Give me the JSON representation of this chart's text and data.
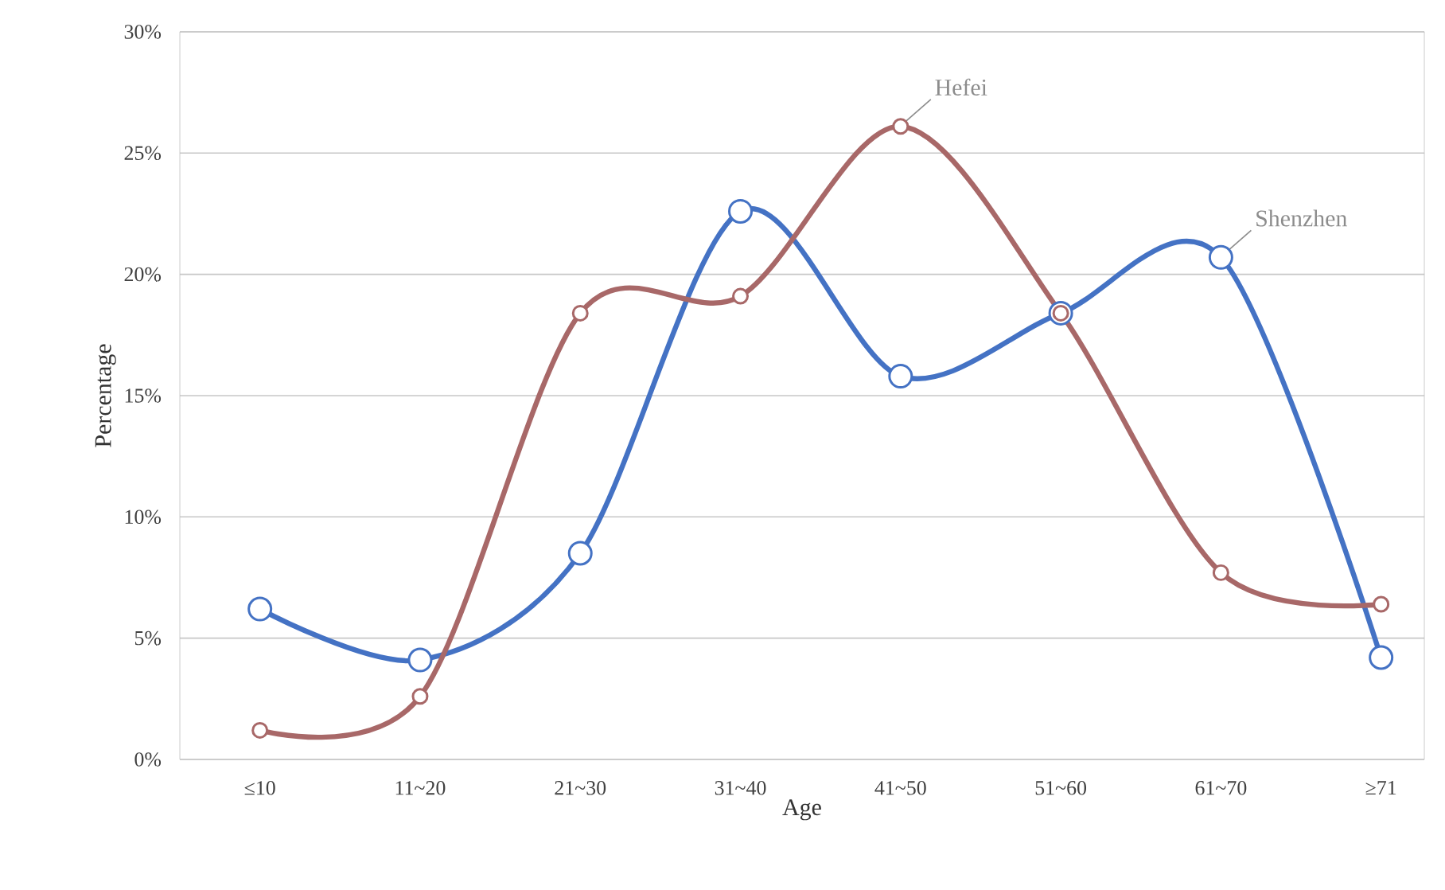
{
  "chart_data": {
    "type": "line",
    "xlabel": "Age",
    "ylabel": "Percentage",
    "categories": [
      "≤10",
      "11~20",
      "21~30",
      "31~40",
      "41~50",
      "51~60",
      "61~70",
      "≥71"
    ],
    "series": [
      {
        "name": "Shenzhen",
        "color": "#4472c4",
        "values": [
          6.2,
          4.1,
          8.5,
          22.6,
          15.8,
          18.4,
          20.7,
          4.2
        ]
      },
      {
        "name": "Hefei",
        "color": "#a86868",
        "values": [
          1.2,
          2.6,
          18.4,
          19.1,
          26.1,
          18.4,
          7.7,
          6.4
        ]
      }
    ],
    "ylim": [
      0,
      30
    ],
    "yticks": [
      {
        "value": 0,
        "label": "0%"
      },
      {
        "value": 5,
        "label": "5%"
      },
      {
        "value": 10,
        "label": "10%"
      },
      {
        "value": 15,
        "label": "15%"
      },
      {
        "value": 20,
        "label": "20%"
      },
      {
        "value": 25,
        "label": "25%"
      },
      {
        "value": 30,
        "label": "30%"
      }
    ],
    "grid": "y",
    "legend": false,
    "marker": "circle",
    "line_style": "solid"
  }
}
